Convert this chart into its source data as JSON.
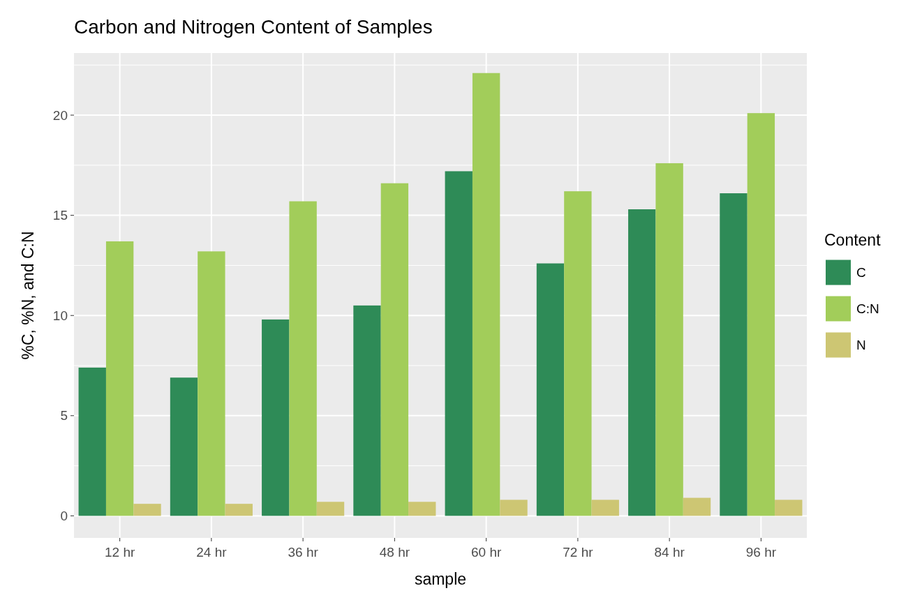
{
  "chart_data": {
    "type": "bar",
    "title": "Carbon and Nitrogen Content of Samples",
    "xlabel": "sample",
    "ylabel": "%C, %N, and C:N",
    "legend_title": "Content",
    "categories": [
      "12 hr",
      "24 hr",
      "36 hr",
      "48 hr",
      "60 hr",
      "72 hr",
      "84 hr",
      "96 hr"
    ],
    "series": [
      {
        "name": "C",
        "color": "#2e8b57",
        "values": [
          7.4,
          6.9,
          9.8,
          10.5,
          17.2,
          12.6,
          15.3,
          16.1
        ]
      },
      {
        "name": "C:N",
        "color": "#a2cd5a",
        "values": [
          13.7,
          13.2,
          15.7,
          16.6,
          22.1,
          16.2,
          17.6,
          20.1
        ]
      },
      {
        "name": "N",
        "color": "#cdc673",
        "values": [
          0.6,
          0.6,
          0.7,
          0.7,
          0.8,
          0.8,
          0.9,
          0.8
        ]
      }
    ],
    "ylim": [
      -1.1,
      23.1
    ],
    "yticks": [
      0,
      5,
      10,
      15,
      20
    ],
    "grid": true,
    "legend": "right"
  }
}
